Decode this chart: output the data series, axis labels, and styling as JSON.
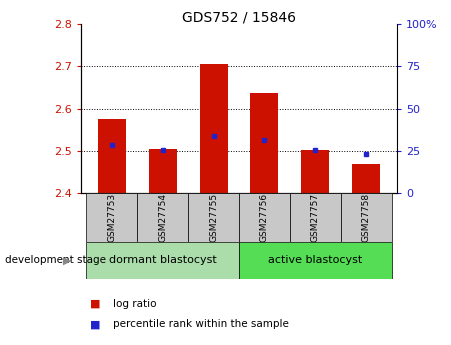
{
  "title": "GDS752 / 15846",
  "samples": [
    "GSM27753",
    "GSM27754",
    "GSM27755",
    "GSM27756",
    "GSM27757",
    "GSM27758"
  ],
  "bar_bottom": 2.4,
  "bar_tops": [
    2.575,
    2.505,
    2.705,
    2.638,
    2.502,
    2.47
  ],
  "blue_values": [
    2.513,
    2.503,
    2.535,
    2.525,
    2.502,
    2.493
  ],
  "ylim_left": [
    2.4,
    2.8
  ],
  "ylim_right": [
    0,
    100
  ],
  "yticks_left": [
    2.4,
    2.5,
    2.6,
    2.7,
    2.8
  ],
  "yticks_right": [
    0,
    25,
    50,
    75,
    100
  ],
  "ytick_labels_right": [
    "0",
    "25",
    "50",
    "75",
    "100%"
  ],
  "groups": [
    {
      "label": "dormant blastocyst",
      "indices": [
        0,
        1,
        2
      ],
      "color": "#aaddaa"
    },
    {
      "label": "active blastocyst",
      "indices": [
        3,
        4,
        5
      ],
      "color": "#55dd55"
    }
  ],
  "bar_color": "#cc1100",
  "blue_color": "#2222cc",
  "bar_width": 0.55,
  "axis_color_left": "#cc1100",
  "axis_color_right": "#2222cc",
  "xlabel_group": "development stage",
  "legend_items": [
    "log ratio",
    "percentile rank within the sample"
  ],
  "legend_colors": [
    "#cc1100",
    "#2222cc"
  ],
  "sample_box_color": "#c8c8c8",
  "plot_bg_color": "#ffffff",
  "title_fontsize": 10,
  "tick_fontsize": 8,
  "sample_fontsize": 6.5,
  "group_fontsize": 8,
  "legend_fontsize": 7.5
}
